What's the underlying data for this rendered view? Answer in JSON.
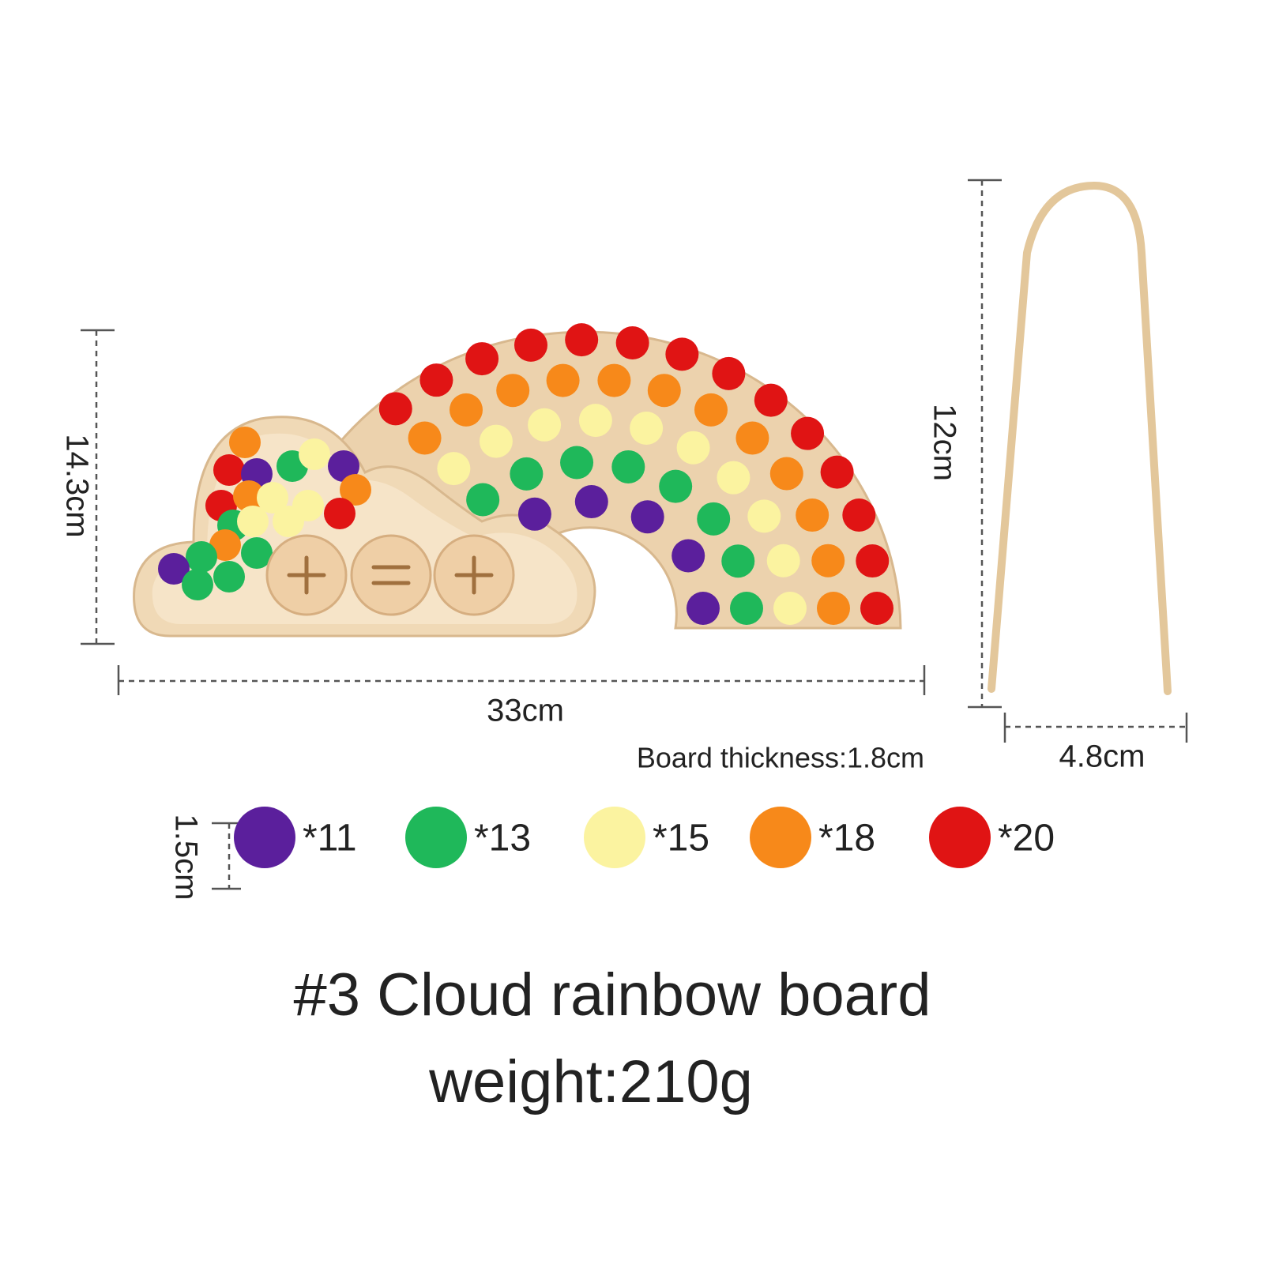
{
  "dimensions": {
    "board_height": "14.3cm",
    "board_width": "33cm",
    "thickness": "Board thickness:1.8cm",
    "tongs_height": "12cm",
    "tongs_width": "4.8cm",
    "ball_size": "1.5cm"
  },
  "balls": [
    {
      "color": "#5b1f9c",
      "label": "*11"
    },
    {
      "color": "#1fb85a",
      "label": "*13"
    },
    {
      "color": "#fbf3a0",
      "label": "*15"
    },
    {
      "color": "#f7891a",
      "label": "*18"
    },
    {
      "color": "#e01414",
      "label": "*20"
    }
  ],
  "title": "#3 Cloud rainbow board",
  "weight": "weight:210g"
}
